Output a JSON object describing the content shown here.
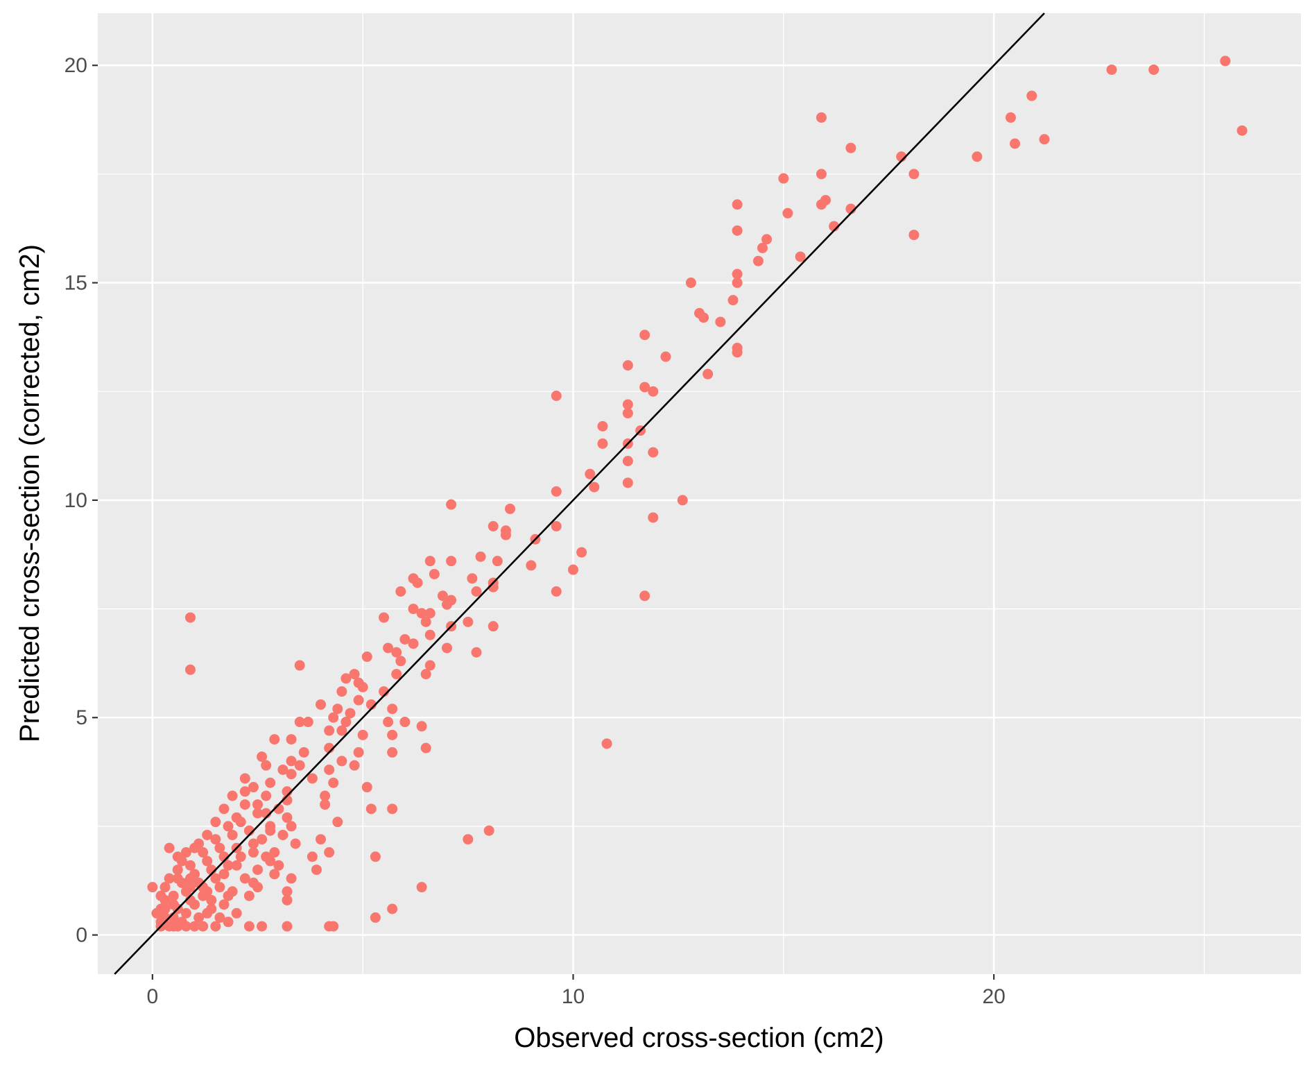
{
  "chart_data": {
    "type": "scatter",
    "title": "",
    "xlabel": "Observed cross-section (cm2)",
    "ylabel": "Predicted cross-section (corrected, cm2)",
    "xlim": [
      -1.3,
      27.3
    ],
    "ylim": [
      -0.9,
      21.2
    ],
    "x_ticks": [
      0,
      10,
      20
    ],
    "y_ticks": [
      0,
      5,
      10,
      15,
      20
    ],
    "x_tick_labels": [
      "0",
      "10",
      "20"
    ],
    "y_tick_labels": [
      "0",
      "5",
      "10",
      "15",
      "20"
    ],
    "grid": true,
    "point_color": "#F8766D",
    "panel_color": "#EBEBEB",
    "reference_line": {
      "slope": 1,
      "intercept": 0,
      "color": "#000000"
    },
    "points": [
      [
        25.5,
        20.1
      ],
      [
        23.8,
        19.9
      ],
      [
        22.8,
        19.9
      ],
      [
        20.9,
        19.3
      ],
      [
        20.4,
        18.8
      ],
      [
        21.2,
        18.3
      ],
      [
        20.5,
        18.2
      ],
      [
        25.9,
        18.5
      ],
      [
        19.6,
        17.9
      ],
      [
        17.8,
        17.9
      ],
      [
        18.1,
        17.5
      ],
      [
        18.1,
        16.1
      ],
      [
        16.6,
        18.1
      ],
      [
        15.9,
        18.8
      ],
      [
        15.9,
        17.5
      ],
      [
        15.9,
        16.8
      ],
      [
        16.0,
        16.9
      ],
      [
        16.6,
        16.7
      ],
      [
        16.2,
        16.3
      ],
      [
        15.0,
        17.4
      ],
      [
        15.1,
        16.6
      ],
      [
        15.4,
        15.6
      ],
      [
        13.9,
        16.8
      ],
      [
        13.9,
        16.2
      ],
      [
        14.6,
        16.0
      ],
      [
        14.5,
        15.8
      ],
      [
        14.4,
        15.5
      ],
      [
        13.9,
        15.2
      ],
      [
        13.9,
        15.0
      ],
      [
        12.8,
        15.0
      ],
      [
        13.8,
        14.6
      ],
      [
        13.0,
        14.3
      ],
      [
        13.1,
        14.2
      ],
      [
        13.5,
        14.1
      ],
      [
        13.9,
        13.5
      ],
      [
        13.9,
        13.4
      ],
      [
        13.2,
        12.9
      ],
      [
        11.7,
        13.8
      ],
      [
        12.2,
        13.3
      ],
      [
        11.3,
        13.1
      ],
      [
        11.7,
        12.6
      ],
      [
        11.9,
        12.5
      ],
      [
        11.3,
        12.2
      ],
      [
        11.3,
        12.0
      ],
      [
        11.6,
        11.6
      ],
      [
        10.7,
        11.7
      ],
      [
        10.7,
        11.3
      ],
      [
        11.3,
        11.3
      ],
      [
        11.9,
        11.1
      ],
      [
        11.3,
        10.9
      ],
      [
        11.3,
        10.4
      ],
      [
        9.6,
        12.4
      ],
      [
        10.4,
        10.6
      ],
      [
        10.5,
        10.3
      ],
      [
        9.6,
        10.2
      ],
      [
        12.6,
        10.0
      ],
      [
        11.9,
        9.6
      ],
      [
        9.6,
        9.4
      ],
      [
        10.2,
        8.8
      ],
      [
        10.0,
        8.4
      ],
      [
        9.6,
        7.9
      ],
      [
        11.7,
        7.8
      ],
      [
        10.8,
        4.4
      ],
      [
        7.1,
        9.9
      ],
      [
        8.5,
        9.8
      ],
      [
        8.1,
        9.4
      ],
      [
        8.4,
        9.3
      ],
      [
        8.4,
        9.2
      ],
      [
        9.1,
        9.1
      ],
      [
        7.8,
        8.7
      ],
      [
        8.2,
        8.6
      ],
      [
        9.0,
        8.5
      ],
      [
        6.6,
        8.6
      ],
      [
        7.1,
        8.6
      ],
      [
        6.2,
        8.2
      ],
      [
        6.7,
        8.3
      ],
      [
        7.6,
        8.2
      ],
      [
        8.1,
        8.1
      ],
      [
        6.3,
        8.1
      ],
      [
        8.1,
        8.0
      ],
      [
        7.7,
        7.9
      ],
      [
        5.9,
        7.9
      ],
      [
        6.9,
        7.8
      ],
      [
        7.1,
        7.7
      ],
      [
        7.0,
        7.6
      ],
      [
        6.2,
        7.5
      ],
      [
        6.4,
        7.4
      ],
      [
        6.6,
        7.4
      ],
      [
        7.5,
        7.2
      ],
      [
        8.1,
        7.1
      ],
      [
        6.5,
        7.2
      ],
      [
        7.1,
        7.1
      ],
      [
        5.5,
        7.3
      ],
      [
        6.6,
        6.9
      ],
      [
        6.0,
        6.8
      ],
      [
        5.6,
        6.6
      ],
      [
        5.8,
        6.5
      ],
      [
        6.2,
        6.7
      ],
      [
        7.0,
        6.6
      ],
      [
        7.7,
        6.5
      ],
      [
        5.1,
        6.4
      ],
      [
        5.9,
        6.3
      ],
      [
        6.6,
        6.2
      ],
      [
        6.5,
        6.0
      ],
      [
        5.8,
        6.0
      ],
      [
        4.8,
        6.0
      ],
      [
        4.6,
        5.9
      ],
      [
        4.9,
        5.8
      ],
      [
        5.0,
        5.7
      ],
      [
        4.5,
        5.6
      ],
      [
        5.5,
        5.6
      ],
      [
        4.9,
        5.4
      ],
      [
        5.2,
        5.3
      ],
      [
        4.0,
        5.3
      ],
      [
        4.4,
        5.2
      ],
      [
        5.7,
        5.2
      ],
      [
        4.7,
        5.1
      ],
      [
        4.3,
        5.0
      ],
      [
        4.6,
        4.9
      ],
      [
        5.6,
        4.9
      ],
      [
        3.5,
        4.9
      ],
      [
        3.7,
        4.9
      ],
      [
        6.0,
        4.9
      ],
      [
        6.4,
        4.8
      ],
      [
        4.5,
        4.7
      ],
      [
        4.2,
        4.7
      ],
      [
        5.0,
        4.6
      ],
      [
        5.7,
        4.6
      ],
      [
        2.9,
        4.5
      ],
      [
        3.3,
        4.5
      ],
      [
        4.2,
        4.3
      ],
      [
        6.5,
        4.3
      ],
      [
        4.9,
        4.2
      ],
      [
        3.6,
        4.2
      ],
      [
        5.7,
        4.2
      ],
      [
        3.3,
        4.0
      ],
      [
        2.6,
        4.1
      ],
      [
        4.5,
        4.0
      ],
      [
        2.7,
        3.9
      ],
      [
        3.5,
        3.9
      ],
      [
        4.8,
        3.9
      ],
      [
        3.1,
        3.8
      ],
      [
        4.2,
        3.8
      ],
      [
        3.3,
        3.7
      ],
      [
        2.2,
        3.6
      ],
      [
        3.8,
        3.6
      ],
      [
        4.3,
        3.5
      ],
      [
        2.8,
        3.5
      ],
      [
        5.1,
        3.4
      ],
      [
        2.2,
        3.3
      ],
      [
        3.2,
        3.3
      ],
      [
        4.1,
        3.2
      ],
      [
        2.5,
        3.0
      ],
      [
        3.2,
        3.1
      ],
      [
        4.1,
        3.0
      ],
      [
        5.2,
        2.9
      ],
      [
        5.7,
        2.9
      ],
      [
        2.7,
        2.8
      ],
      [
        3.2,
        2.7
      ],
      [
        4.4,
        2.6
      ],
      [
        3.3,
        2.5
      ],
      [
        2.8,
        2.4
      ],
      [
        4.0,
        2.2
      ],
      [
        3.4,
        2.1
      ],
      [
        7.5,
        2.2
      ],
      [
        8.0,
        2.4
      ],
      [
        2.4,
        1.9
      ],
      [
        4.2,
        1.9
      ],
      [
        5.3,
        1.8
      ],
      [
        2.8,
        1.7
      ],
      [
        3.8,
        1.8
      ],
      [
        3.9,
        1.5
      ],
      [
        3.0,
        1.6
      ],
      [
        2.9,
        1.4
      ],
      [
        3.3,
        1.3
      ],
      [
        3.2,
        1.0
      ],
      [
        6.4,
        1.1
      ],
      [
        2.4,
        1.2
      ],
      [
        3.2,
        0.8
      ],
      [
        5.7,
        0.6
      ],
      [
        5.3,
        0.4
      ],
      [
        4.2,
        0.2
      ],
      [
        4.3,
        0.2
      ],
      [
        2.6,
        0.2
      ],
      [
        2.3,
        0.2
      ],
      [
        0.9,
        7.3
      ],
      [
        0.9,
        6.1
      ],
      [
        3.5,
        6.2
      ],
      [
        3.2,
        0.2
      ],
      [
        1.0,
        0.2
      ],
      [
        0.5,
        0.2
      ],
      [
        0.2,
        0.3
      ],
      [
        0.1,
        0.5
      ],
      [
        0.3,
        0.8
      ],
      [
        0.0,
        1.1
      ],
      [
        0.4,
        2.0
      ],
      [
        0.8,
        1.9
      ],
      [
        0.6,
        1.3
      ],
      [
        0.9,
        1.1
      ],
      [
        1.2,
        0.9
      ],
      [
        1.4,
        0.8
      ],
      [
        1.7,
        0.7
      ],
      [
        2.0,
        0.5
      ],
      [
        1.8,
        0.3
      ],
      [
        1.5,
        0.2
      ],
      [
        1.1,
        0.4
      ],
      [
        0.7,
        0.3
      ],
      [
        0.3,
        0.6
      ],
      [
        0.5,
        0.9
      ],
      [
        0.7,
        1.2
      ],
      [
        1.0,
        1.4
      ],
      [
        1.3,
        1.7
      ],
      [
        1.6,
        2.0
      ],
      [
        1.9,
        2.3
      ],
      [
        2.1,
        2.6
      ],
      [
        1.8,
        2.5
      ],
      [
        1.5,
        2.2
      ],
      [
        1.2,
        1.9
      ],
      [
        0.9,
        1.6
      ],
      [
        0.6,
        1.5
      ],
      [
        0.4,
        1.3
      ],
      [
        0.2,
        0.9
      ],
      [
        0.3,
        0.4
      ],
      [
        0.6,
        0.6
      ],
      [
        0.9,
        0.8
      ],
      [
        1.2,
        1.1
      ],
      [
        1.5,
        1.3
      ],
      [
        1.8,
        1.6
      ],
      [
        2.1,
        1.8
      ],
      [
        2.4,
        2.1
      ],
      [
        2.0,
        2.0
      ],
      [
        1.7,
        1.8
      ],
      [
        1.4,
        1.5
      ],
      [
        1.1,
        1.2
      ],
      [
        0.8,
        1.0
      ],
      [
        0.5,
        0.7
      ],
      [
        0.2,
        0.2
      ],
      [
        0.4,
        0.2
      ],
      [
        0.6,
        0.2
      ],
      [
        0.8,
        0.5
      ],
      [
        1.0,
        0.7
      ],
      [
        1.3,
        0.5
      ],
      [
        1.6,
        0.4
      ],
      [
        1.9,
        1.0
      ],
      [
        2.2,
        1.3
      ],
      [
        2.5,
        1.5
      ],
      [
        2.7,
        1.8
      ],
      [
        2.3,
        2.4
      ],
      [
        2.0,
        2.7
      ],
      [
        1.7,
        2.9
      ],
      [
        2.2,
        3.0
      ],
      [
        2.5,
        2.8
      ],
      [
        1.3,
        2.3
      ],
      [
        1.0,
        2.0
      ],
      [
        0.7,
        1.7
      ],
      [
        1.6,
        1.1
      ],
      [
        2.3,
        0.9
      ],
      [
        0.3,
        1.1
      ],
      [
        0.5,
        0.4
      ],
      [
        0.8,
        0.2
      ],
      [
        1.2,
        0.2
      ],
      [
        1.4,
        0.6
      ],
      [
        1.7,
        1.4
      ],
      [
        2.0,
        1.6
      ],
      [
        2.6,
        2.2
      ],
      [
        2.8,
        2.5
      ],
      [
        3.0,
        2.9
      ],
      [
        2.7,
        3.2
      ],
      [
        2.4,
        3.4
      ],
      [
        1.9,
        3.2
      ],
      [
        1.5,
        2.6
      ],
      [
        1.1,
        2.1
      ],
      [
        0.6,
        1.8
      ],
      [
        0.9,
        1.3
      ],
      [
        1.3,
        1.0
      ],
      [
        1.8,
        0.9
      ],
      [
        2.5,
        1.1
      ],
      [
        2.9,
        1.9
      ],
      [
        3.1,
        2.3
      ],
      [
        0.2,
        0.6
      ]
    ]
  }
}
